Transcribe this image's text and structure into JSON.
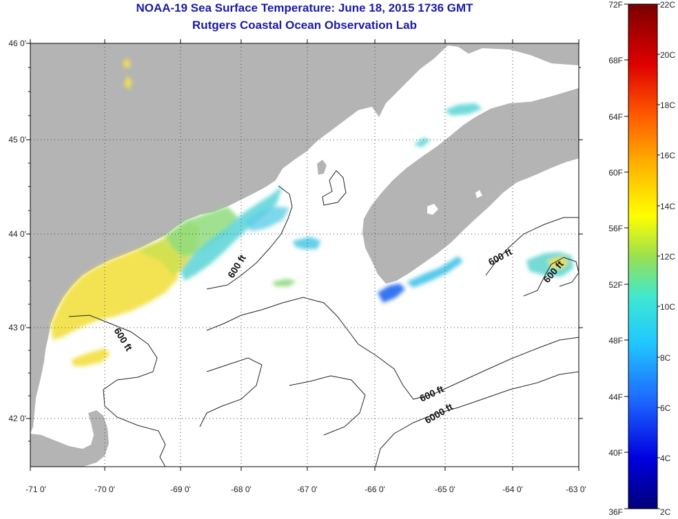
{
  "title": {
    "line1": "NOAA-19 Sea Surface Temperature:  June 18, 2015 1736 GMT",
    "line2": "Rutgers Coastal Ocean Observation Lab"
  },
  "axes": {
    "lat_labels": [
      "46 0'",
      "45 0'",
      "44 0'",
      "43 0'",
      "42 0'"
    ],
    "lon_labels": [
      "-71 0'",
      "-70 0'",
      "-69 0'",
      "-68 0'",
      "-67 0'",
      "-66 0'",
      "-65 0'",
      "-64 0'",
      "-63 0'"
    ]
  },
  "contours": {
    "label_600": "600 ft",
    "label_6000": "6000 ft"
  },
  "colorbar": {
    "f_labels": [
      "72F",
      "68F",
      "64F",
      "60F",
      "56F",
      "52F",
      "48F",
      "44F",
      "40F",
      "36F"
    ],
    "c_labels": [
      "22C",
      "20C",
      "18C",
      "16C",
      "14C",
      "12C",
      "10C",
      "8C",
      "6C",
      "4C",
      "2C"
    ]
  },
  "colors": {
    "land": "#b4b4b4",
    "title": "#1a1aa6",
    "contour": "#222222"
  }
}
